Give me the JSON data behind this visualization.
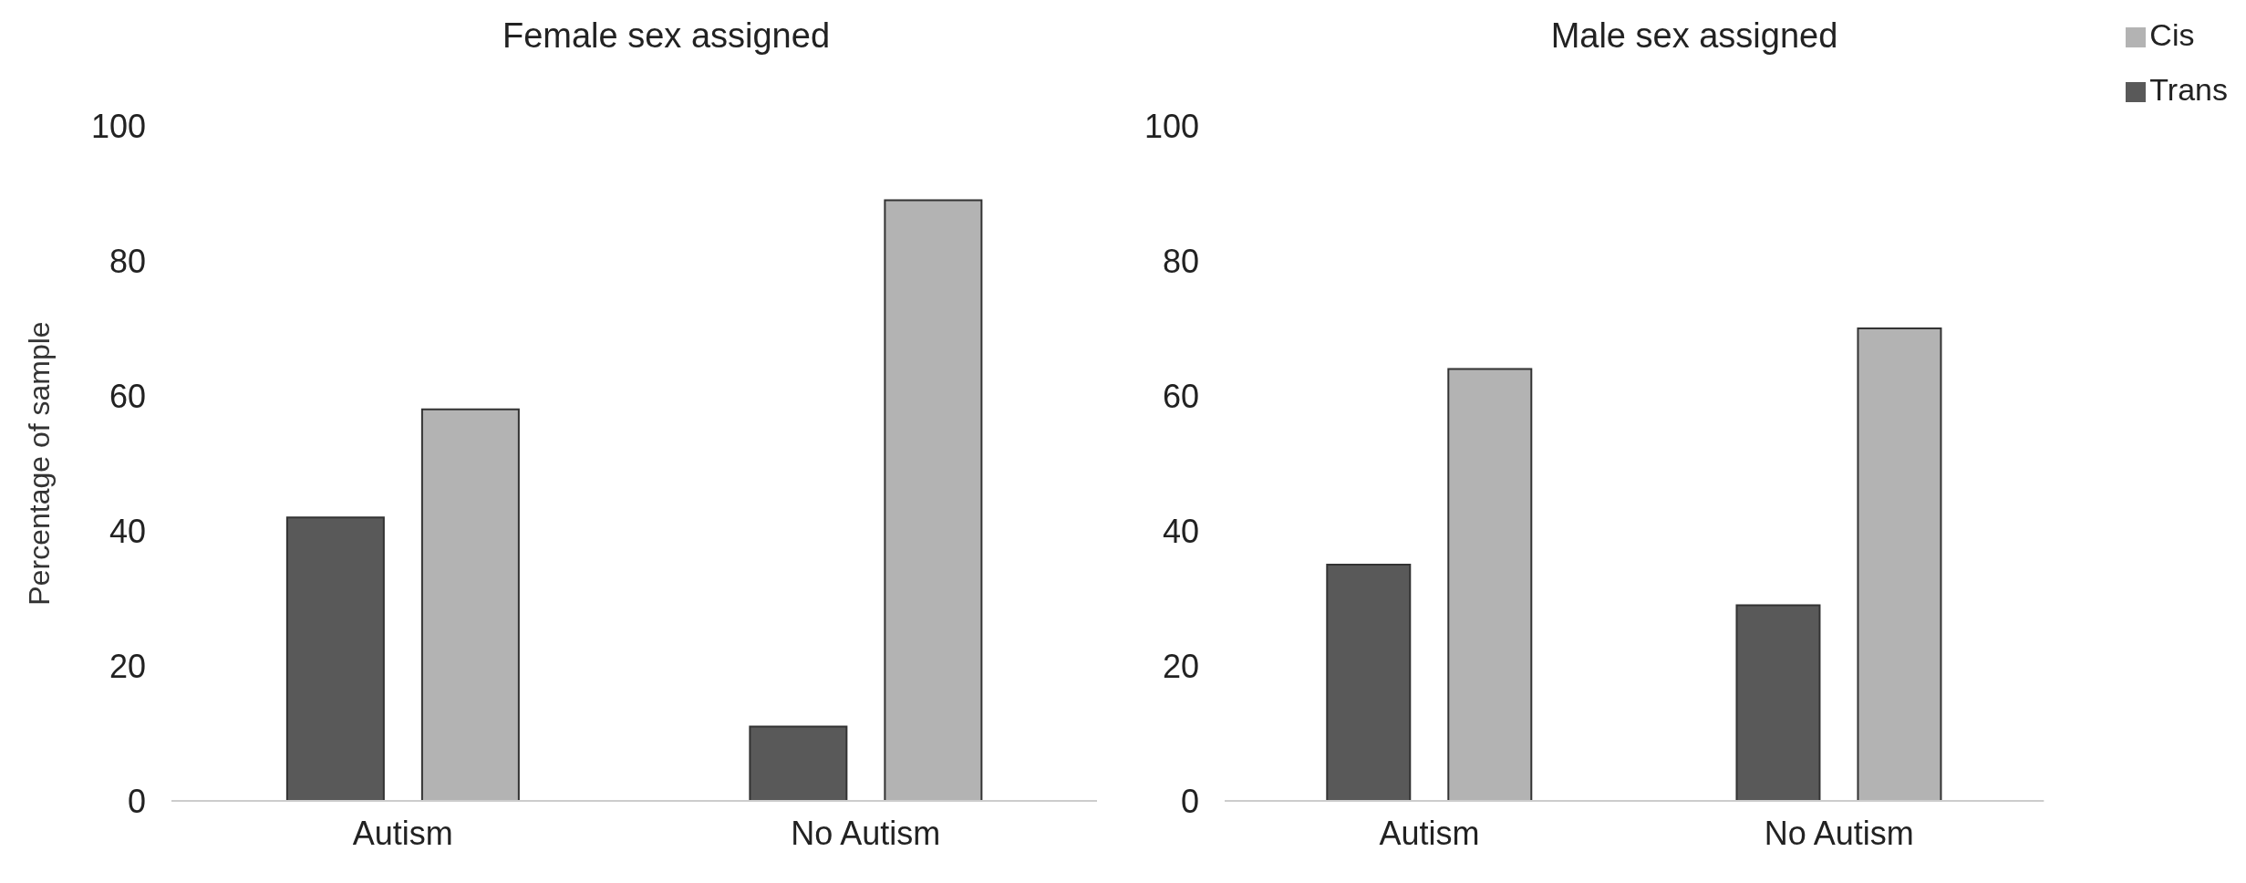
{
  "chart_data": [
    {
      "type": "bar",
      "title": "Female sex assigned",
      "ylabel": "Percentage of sample",
      "categories": [
        "Autism",
        "No Autism"
      ],
      "series": [
        {
          "color": "#595959",
          "values": [
            42,
            11
          ]
        },
        {
          "color": "#b3b3b3",
          "values": [
            58,
            89
          ]
        }
      ],
      "ylim": [
        0,
        100
      ],
      "yticks": [
        0,
        20,
        40,
        60,
        80,
        100
      ],
      "grid": false,
      "legend": false
    },
    {
      "type": "bar",
      "title": "Male sex assigned",
      "categories": [
        "Autism",
        "No Autism"
      ],
      "series": [
        {
          "name": "Trans",
          "color": "#595959",
          "values": [
            35,
            29
          ]
        },
        {
          "name": "Cis",
          "color": "#b3b3b3",
          "values": [
            64,
            70
          ]
        }
      ],
      "ylim": [
        0,
        100
      ],
      "yticks": [
        0,
        20,
        40,
        60,
        80,
        100
      ],
      "grid": false,
      "legend": "top right"
    }
  ]
}
